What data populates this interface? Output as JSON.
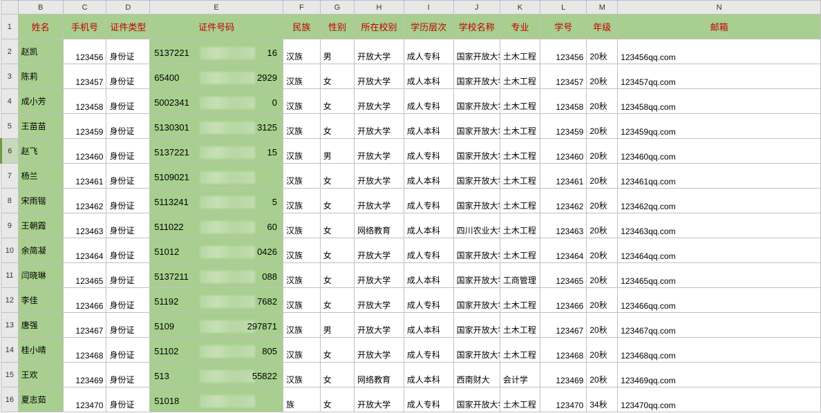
{
  "columns": {
    "letters": [
      "B",
      "C",
      "D",
      "E",
      "F",
      "G",
      "H",
      "I",
      "J",
      "K",
      "L",
      "M",
      "N"
    ],
    "widths": [
      58,
      56,
      56,
      172,
      48,
      44,
      64,
      64,
      60,
      52,
      60,
      40,
      262
    ],
    "headers": [
      "姓名",
      "手机号",
      "证件类型",
      "证件号码",
      "民族",
      "性别",
      "所在校别",
      "学历层次",
      "学校名称",
      "专业",
      "学号",
      "年级",
      "邮箱"
    ]
  },
  "selected_row": 6,
  "rows": [
    {
      "n": "2",
      "name": "赵凯",
      "phone": "123456",
      "idtype": "身份证",
      "idp": "5137221",
      "ids": "16",
      "eth": "汉族",
      "sex": "男",
      "sch": "开放大学",
      "lvl": "成人专科",
      "uni": "国家开放大学",
      "maj": "土木工程",
      "sid": "123456",
      "yr": "20秋",
      "mail": "123456qq.com",
      "short": false
    },
    {
      "n": "3",
      "name": "陈莉",
      "phone": "123457",
      "idtype": "身份证",
      "idp": "65400",
      "ids": "2929",
      "eth": "汉族",
      "sex": "女",
      "sch": "开放大学",
      "lvl": "成人本科",
      "uni": "国家开放大学",
      "maj": "土木工程",
      "sid": "123457",
      "yr": "20秋",
      "mail": "123457qq.com",
      "short": false
    },
    {
      "n": "4",
      "name": "成小芳",
      "phone": "123458",
      "idtype": "身份证",
      "idp": "5002341",
      "ids": "0",
      "eth": "汉族",
      "sex": "女",
      "sch": "开放大学",
      "lvl": "成人专科",
      "uni": "国家开放大学",
      "maj": "土木工程",
      "sid": "123458",
      "yr": "20秋",
      "mail": "123458qq.com",
      "short": false
    },
    {
      "n": "5",
      "name": "王苗苗",
      "phone": "123459",
      "idtype": "身份证",
      "idp": "5130301",
      "ids": "3125",
      "eth": "汉族",
      "sex": "女",
      "sch": "开放大学",
      "lvl": "成人本科",
      "uni": "国家开放大学",
      "maj": "土木工程",
      "sid": "123459",
      "yr": "20秋",
      "mail": "123459qq.com",
      "short": false
    },
    {
      "n": "6",
      "name": "赵飞",
      "phone": "123460",
      "idtype": "身份证",
      "idp": "5137221",
      "ids": "15",
      "eth": "汉族",
      "sex": "男",
      "sch": "开放大学",
      "lvl": "成人专科",
      "uni": "国家开放大学",
      "maj": "土木工程",
      "sid": "123460",
      "yr": "20秋",
      "mail": "123460qq.com",
      "short": false
    },
    {
      "n": "7",
      "name": "杨兰",
      "phone": "123461",
      "idtype": "身份证",
      "idp": "5109021",
      "ids": "",
      "eth": "汉族",
      "sex": "女",
      "sch": "开放大学",
      "lvl": "成人本科",
      "uni": "国家开放大学",
      "maj": "土木工程",
      "sid": "123461",
      "yr": "20秋",
      "mail": "123461qq.com",
      "short": false
    },
    {
      "n": "8",
      "name": "宋雨锴",
      "phone": "123462",
      "idtype": "身份证",
      "idp": "5113241",
      "ids": "5",
      "eth": "汉族",
      "sex": "女",
      "sch": "开放大学",
      "lvl": "成人专科",
      "uni": "国家开放大学",
      "maj": "土木工程",
      "sid": "123462",
      "yr": "20秋",
      "mail": "123462qq.com",
      "short": false
    },
    {
      "n": "9",
      "name": "王朝霞",
      "phone": "123463",
      "idtype": "身份证",
      "idp": "511022",
      "ids": "60",
      "eth": "汉族",
      "sex": "女",
      "sch": "网络教育",
      "lvl": "成人本科",
      "uni": "四川农业大学",
      "maj": "土木工程",
      "sid": "123463",
      "yr": "20秋",
      "mail": "123463qq.com",
      "short": false
    },
    {
      "n": "10",
      "name": "余简凝",
      "phone": "123464",
      "idtype": "身份证",
      "idp": "51012",
      "ids": "0426",
      "eth": "汉族",
      "sex": "女",
      "sch": "开放大学",
      "lvl": "成人专科",
      "uni": "国家开放大学",
      "maj": "土木工程",
      "sid": "123464",
      "yr": "20秋",
      "mail": "123464qq.com",
      "short": false
    },
    {
      "n": "11",
      "name": "闫晓琳",
      "phone": "123465",
      "idtype": "身份证",
      "idp": "5137211",
      "ids": "088",
      "eth": "汉族",
      "sex": "女",
      "sch": "开放大学",
      "lvl": "成人本科",
      "uni": "国家开放大学",
      "maj": "工商管理",
      "sid": "123465",
      "yr": "20秋",
      "mail": "123465qq.com",
      "short": false
    },
    {
      "n": "12",
      "name": "李佳",
      "phone": "123466",
      "idtype": "身份证",
      "idp": "51192",
      "ids": "7682",
      "eth": "汉族",
      "sex": "女",
      "sch": "开放大学",
      "lvl": "成人专科",
      "uni": "国家开放大学",
      "maj": "土木工程",
      "sid": "123466",
      "yr": "20秋",
      "mail": "123466qq.com",
      "short": false
    },
    {
      "n": "13",
      "name": "唐强",
      "phone": "123467",
      "idtype": "身份证",
      "idp": "5109",
      "ids": "297871",
      "eth": "汉族",
      "sex": "男",
      "sch": "开放大学",
      "lvl": "成人本科",
      "uni": "国家开放大学",
      "maj": "土木工程",
      "sid": "123467",
      "yr": "20秋",
      "mail": "123467qq.com",
      "short": false
    },
    {
      "n": "14",
      "name": "桂小晴",
      "phone": "123468",
      "idtype": "身份证",
      "idp": "51102",
      "ids": "805",
      "eth": "汉族",
      "sex": "女",
      "sch": "开放大学",
      "lvl": "成人专科",
      "uni": "国家开放大学",
      "maj": "土木工程",
      "sid": "123468",
      "yr": "20秋",
      "mail": "123468qq.com",
      "short": false
    },
    {
      "n": "15",
      "name": "王欢",
      "phone": "123469",
      "idtype": "身份证",
      "idp": "513",
      "ids": "55822",
      "eth": "汉族",
      "sex": "女",
      "sch": "网络教育",
      "lvl": "成人本科",
      "uni": "西南财大",
      "maj": "会计学",
      "sid": "123469",
      "yr": "20秋",
      "mail": "123469qq.com",
      "short": true
    },
    {
      "n": "16",
      "name": "夏志茹",
      "phone": "123470",
      "idtype": "身份证",
      "idp": "51018",
      "ids": "",
      "eth": "   族",
      "sex": "女",
      "sch": "开放大学",
      "lvl": "成人专科",
      "uni": "国家开放大学",
      "maj": "土木工程",
      "sid": "123470",
      "yr": "34秋",
      "mail": "123470qq.com",
      "short": false
    }
  ],
  "style": {
    "header_bg": "#a8cf8f",
    "header_fg": "#c00000",
    "grid_color": "#c0c0c0",
    "rowcol_head_bg": "#e8e8e8",
    "selected_row_bg": "#c8d8b8"
  }
}
